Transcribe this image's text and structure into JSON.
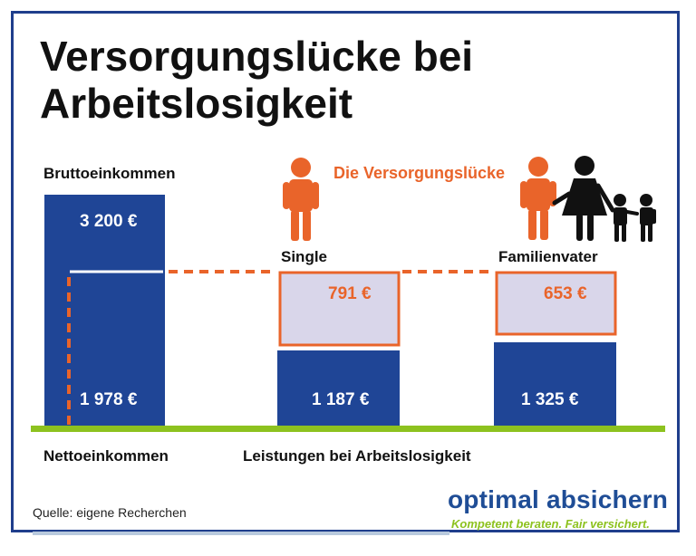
{
  "title": "Versorgungslücke bei Arbeitslosigkeit",
  "labels": {
    "brutto": "Bruttoeinkommen",
    "netto": "Nettoeinkommen",
    "leistungen": "Leistungen bei Arbeitslosigkeit",
    "luecke": "Die Versorgungslücke",
    "single": "Single",
    "familienvater": "Familienvater"
  },
  "source": "Quelle: eigene Recherchen",
  "brand": {
    "name": "optimal absichern",
    "tagline": "Kompetent beraten. Fair versichert."
  },
  "colors": {
    "bar": "#1f4596",
    "gap_fill": "#d9d6ea",
    "accent": "#e9642a",
    "baseline": "#8dc21f"
  },
  "chart_data": {
    "type": "bar",
    "categories": [
      "Bruttoeinkommen",
      "Single",
      "Familienvater"
    ],
    "gross_income": 3200,
    "net_income": 1978,
    "benefits": [
      1187,
      1325
    ],
    "gaps": [
      791,
      653
    ],
    "value_labels": {
      "gross": "3 200 €",
      "net": "1 978 €",
      "benefit_single": "1 187 €",
      "benefit_family": "1 325 €",
      "gap_single": "791 €",
      "gap_family": "653 €"
    },
    "icons": [
      "person-icon",
      "family-icon"
    ]
  }
}
